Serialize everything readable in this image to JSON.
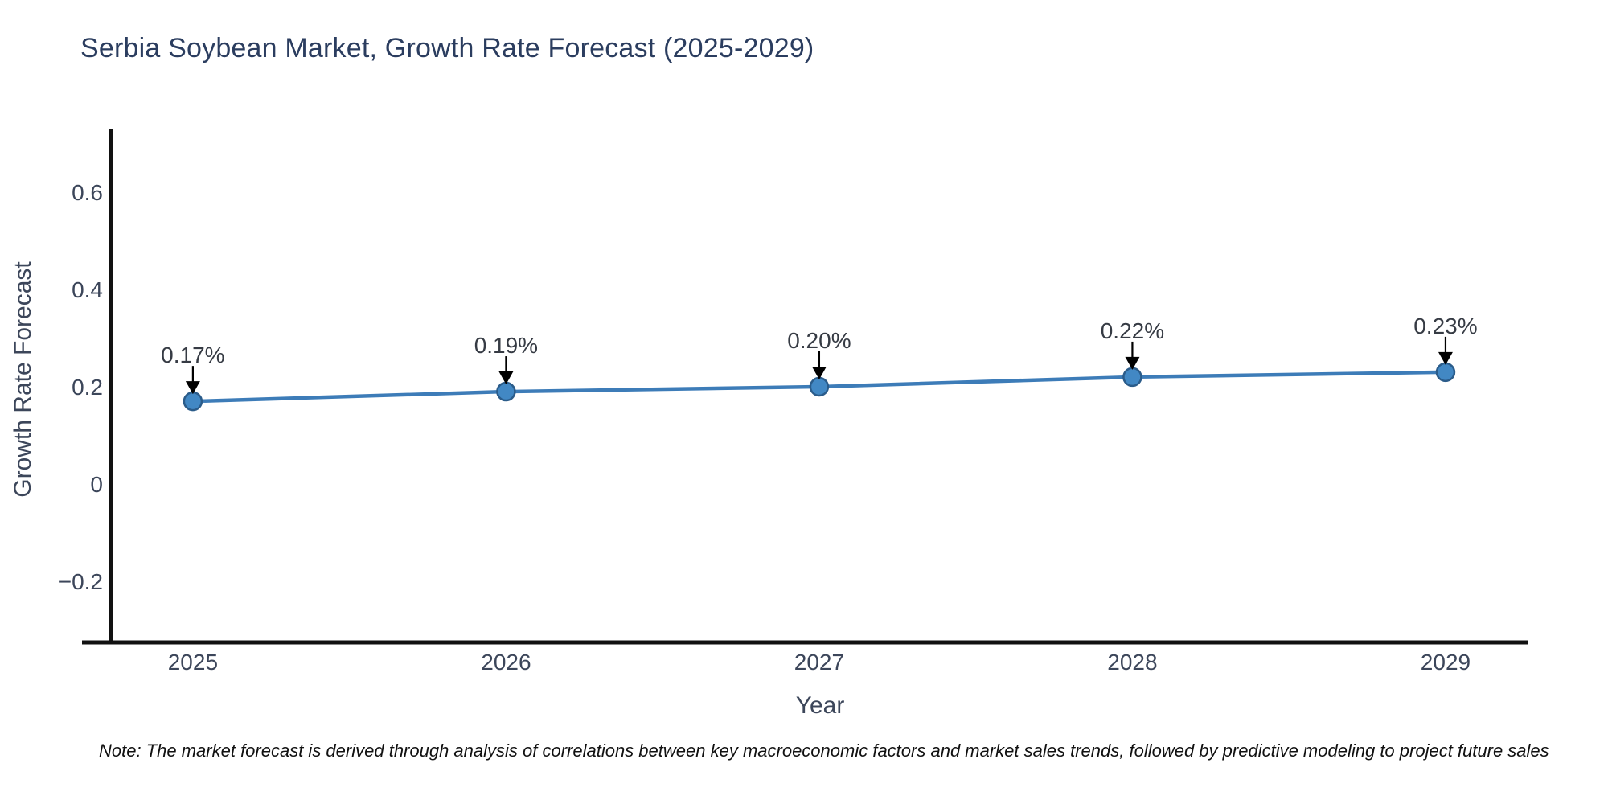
{
  "title": "Serbia Soybean Market, Growth Rate Forecast (2025-2029)",
  "note": "Note: The market forecast is derived through analysis of correlations between key macroeconomic factors and market sales trends, followed by predictive modeling to project future sales",
  "chart_data": {
    "type": "line",
    "title": "Serbia Soybean Market, Growth Rate Forecast (2025-2029)",
    "xlabel": "Year",
    "ylabel": "Growth Rate Forecast",
    "x": [
      2025,
      2026,
      2027,
      2028,
      2029
    ],
    "xticks": [
      "2025",
      "2026",
      "2027",
      "2028",
      "2029"
    ],
    "series": [
      {
        "name": "Growth Rate Forecast",
        "values": [
          0.17,
          0.19,
          0.2,
          0.22,
          0.23
        ]
      }
    ],
    "point_labels": [
      "0.17%",
      "0.19%",
      "0.20%",
      "0.22%",
      "0.23%"
    ],
    "yticks": [
      0.6,
      0.4,
      0.2,
      0,
      -0.2
    ],
    "ytick_labels": [
      "0.6",
      "0.4",
      "0.2",
      "0",
      "−0.2"
    ],
    "xlim": [
      2024.646,
      2029.262
    ],
    "ylim": [
      -0.326,
      0.731
    ],
    "grid": false,
    "legend": false,
    "marker_size": 11,
    "colors": {
      "line": "#3d7cb8",
      "marker_fill": "#4288c4",
      "marker_edge": "#2b5c8a",
      "axis_spine": "#111111",
      "tick_text": "#3c465a",
      "axis_title_text": "#3c465a",
      "title_text": "#2b3d5f",
      "annotation_text": "#363b44",
      "arrow": "#000000",
      "note_text": "#111111",
      "background": "#ffffff"
    }
  }
}
